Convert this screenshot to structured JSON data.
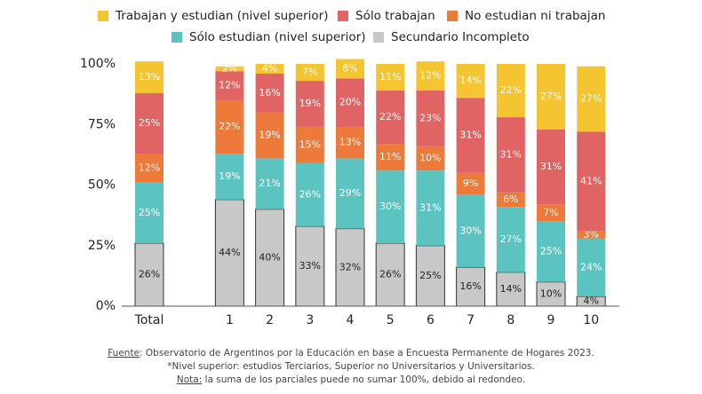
{
  "chart_data": {
    "type": "stacked_bar",
    "categories": [
      "Total",
      null,
      "1",
      "2",
      "3",
      "4",
      "5",
      "6",
      "7",
      "8",
      "9",
      "10"
    ],
    "series": [
      {
        "name": "Trabajan y estudian (nivel superior)",
        "color": "#f5c431",
        "values": [
          13,
          null,
          2,
          4,
          7,
          8,
          11,
          12,
          14,
          22,
          27,
          27
        ],
        "value_labels": [
          "13%",
          null,
          "2%",
          "4%",
          "7%",
          "8%",
          "11%",
          "12%",
          "14%",
          "22%",
          "27%",
          "27%"
        ]
      },
      {
        "name": "Sólo trabajan",
        "color": "#e06464",
        "values": [
          25,
          null,
          12,
          16,
          19,
          20,
          22,
          23,
          31,
          31,
          31,
          41
        ],
        "value_labels": [
          "25%",
          null,
          "12%",
          "16%",
          "19%",
          "20%",
          "22%",
          "23%",
          "31%",
          "31%",
          "31%",
          "41%"
        ]
      },
      {
        "name": "No estudian ni trabajan",
        "color": "#ed7a3a",
        "values": [
          12,
          null,
          22,
          19,
          15,
          13,
          11,
          10,
          9,
          6,
          7,
          3
        ],
        "value_labels": [
          "12%",
          null,
          "22%",
          "19%",
          "15%",
          "13%",
          "11%",
          "10%",
          "9%",
          "6%",
          "7%",
          "3%"
        ]
      },
      {
        "name": "Sólo estudian (nivel superior)",
        "color": "#5cc4c0",
        "values": [
          25,
          null,
          19,
          21,
          26,
          29,
          30,
          31,
          30,
          27,
          25,
          24
        ],
        "value_labels": [
          "25%",
          null,
          "19%",
          "21%",
          "26%",
          "29%",
          "30%",
          "31%",
          "30%",
          "27%",
          "25%",
          "24%"
        ]
      },
      {
        "name": "Secundario Incompleto",
        "color": "#c8c8c8",
        "values": [
          26,
          null,
          44,
          40,
          33,
          32,
          26,
          25,
          16,
          14,
          10,
          4
        ],
        "value_labels": [
          "26%",
          null,
          "44%",
          "40%",
          "33%",
          "32%",
          "26%",
          "25%",
          "16%",
          "14%",
          "10%",
          "4%"
        ]
      }
    ],
    "ylim": [
      0,
      100
    ],
    "yticks": [
      {
        "value": 0,
        "label": "0%"
      },
      {
        "value": 25,
        "label": "25%"
      },
      {
        "value": 50,
        "label": "50%"
      },
      {
        "value": 75,
        "label": "75%"
      },
      {
        "value": 100,
        "label": "100%"
      }
    ],
    "grid": false
  },
  "notes": {
    "source_label": "Fuente",
    "source": ": Observatorio de Argentinos por la Educación en base a Encuesta Permanente de Hogares 2023.",
    "footnote": "*Nivel superior: estudios Terciarios, Superior no Universitarios y Universitarios.",
    "note_label": "Nota:",
    "note": " la suma de los parciales puede no sumar 100%, debido al redondeo."
  }
}
